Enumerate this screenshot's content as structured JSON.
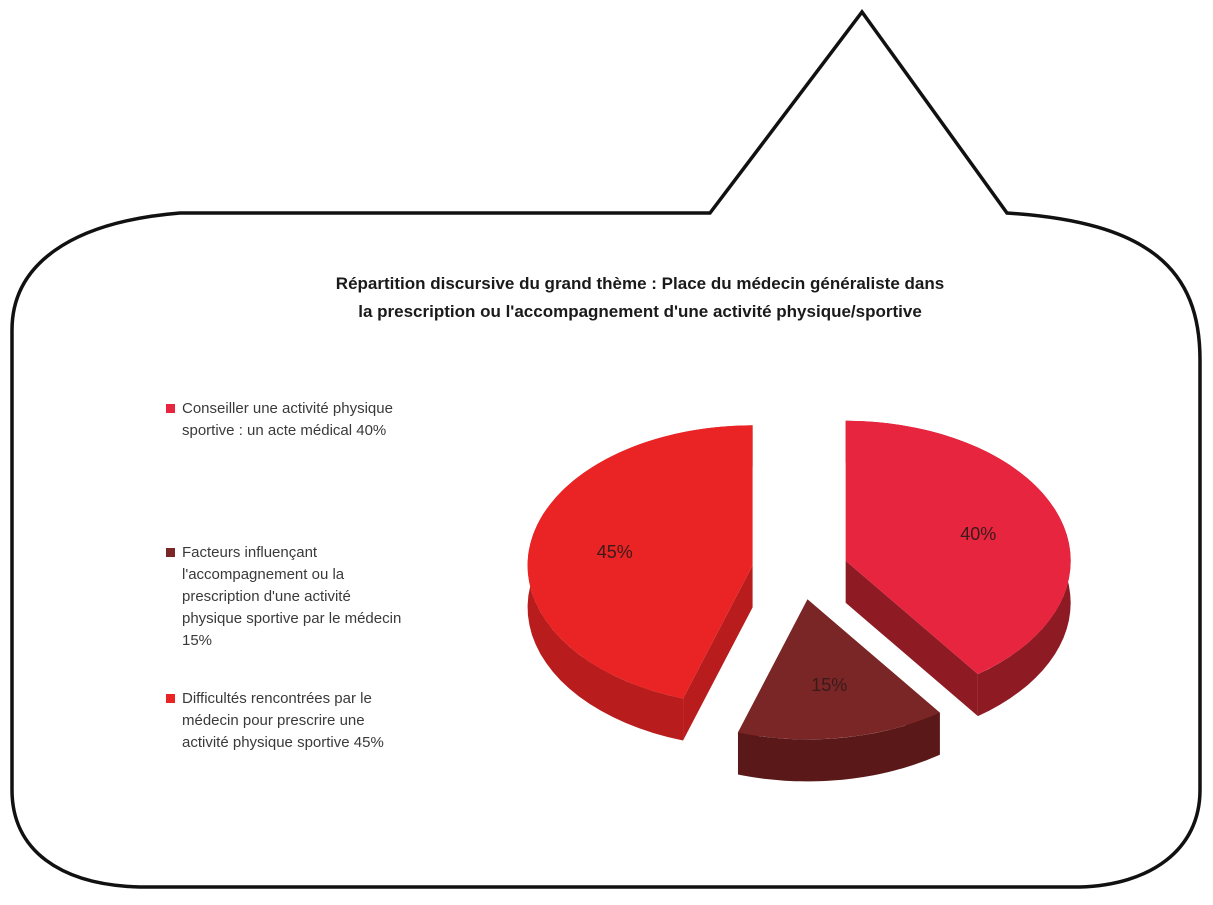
{
  "colors": {
    "outline": "#111111",
    "slice_1": "#e8253f",
    "slice_1_side": "#8e1a24",
    "slice_2": "#7b2626",
    "slice_2_side": "#5a1818",
    "slice_3": "#ea2424",
    "slice_3_side": "#b81c1c"
  },
  "chart_data": {
    "type": "pie",
    "style": "3d-exploded",
    "title_lines": [
      "Répartition discursive du grand thème : Place du médecin généraliste dans",
      "la prescription ou l'accompagnement d'une activité  physique/sportive"
    ],
    "slices": [
      {
        "legend_lines": [
          "Conseiller une activité physique",
          "sportive : un acte médical 40%"
        ],
        "value": 40,
        "label": "40%",
        "color": "#e8253f"
      },
      {
        "legend_lines": [
          "Facteurs influençant",
          "l'accompagnement ou la",
          "prescription d'une activité",
          "physique sportive par le médecin",
          "15%"
        ],
        "value": 15,
        "label": "15%",
        "color": "#7b2626"
      },
      {
        "legend_lines": [
          "Difficultés rencontrées par le",
          "médecin pour prescrire une",
          "activité physique sportive 45%"
        ],
        "value": 45,
        "label": "45%",
        "color": "#ea2424"
      }
    ],
    "legend_position": "left"
  }
}
